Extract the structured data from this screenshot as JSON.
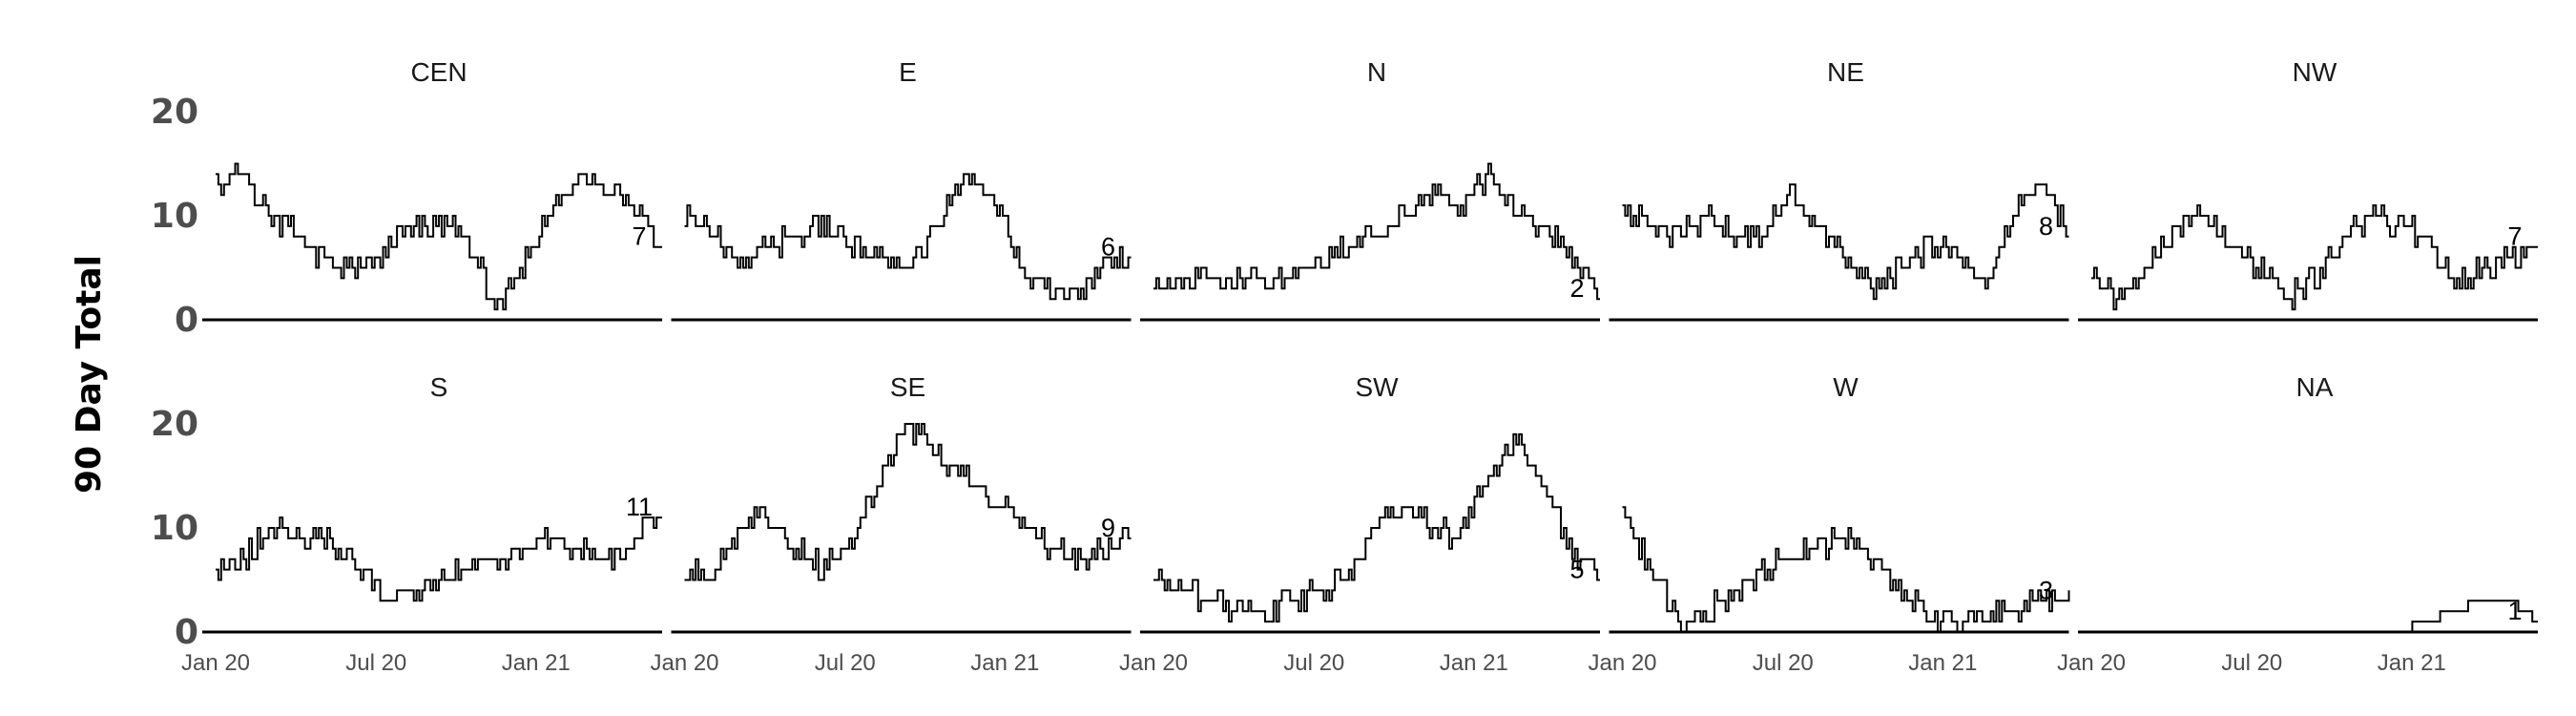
{
  "chart_data": {
    "type": "line",
    "ylabel": "90 Day Total",
    "xlabel": "",
    "layout": {
      "rows": 2,
      "cols": 5
    },
    "x_ticks": [
      "Jan 20",
      "Jul 20",
      "Jan 21"
    ],
    "y_ticks": [
      0,
      10,
      20
    ],
    "ylim": [
      0,
      20
    ],
    "xlim": [
      "Jan 2020",
      "May 2021"
    ],
    "grid": false,
    "line_color": "#000000",
    "panels": [
      {
        "name": "CEN",
        "end_label": "7",
        "x": [
          "2020-01",
          "2020-02",
          "2020-03",
          "2020-04",
          "2020-05",
          "2020-06",
          "2020-07",
          "2020-08",
          "2020-09",
          "2020-10",
          "2020-11",
          "2020-12",
          "2021-01",
          "2021-02",
          "2021-03",
          "2021-04",
          "2021-05"
        ],
        "values": [
          13,
          14,
          10,
          8,
          5,
          5,
          6,
          9,
          9,
          8,
          1,
          5,
          10,
          14,
          12,
          11,
          7
        ]
      },
      {
        "name": "E",
        "end_label": "6",
        "x": [
          "2020-01",
          "2020-02",
          "2020-03",
          "2020-04",
          "2020-05",
          "2020-06",
          "2020-07",
          "2020-08",
          "2020-09",
          "2020-10",
          "2020-11",
          "2020-12",
          "2021-01",
          "2021-02",
          "2021-03",
          "2021-04",
          "2021-05"
        ],
        "values": [
          10,
          8,
          6,
          7,
          8,
          9,
          7,
          6,
          5,
          9,
          13,
          12,
          5,
          3,
          2,
          6,
          6
        ]
      },
      {
        "name": "N",
        "end_label": "2",
        "x": [
          "2020-01",
          "2020-02",
          "2020-03",
          "2020-04",
          "2020-05",
          "2020-06",
          "2020-07",
          "2020-08",
          "2020-09",
          "2020-10",
          "2020-11",
          "2020-12",
          "2021-01",
          "2021-02",
          "2021-03",
          "2021-04",
          "2021-05"
        ],
        "values": [
          3,
          3,
          4,
          4,
          4,
          4,
          6,
          7,
          8,
          10,
          12,
          11,
          14,
          10,
          9,
          6,
          2
        ]
      },
      {
        "name": "NE",
        "end_label": "8",
        "x": [
          "2020-01",
          "2020-02",
          "2020-03",
          "2020-04",
          "2020-05",
          "2020-06",
          "2020-07",
          "2020-08",
          "2020-09",
          "2020-10",
          "2020-11",
          "2020-12",
          "2021-01",
          "2021-02",
          "2021-03",
          "2021-04",
          "2021-05"
        ],
        "values": [
          11,
          9,
          8,
          10,
          8,
          8,
          12,
          8,
          6,
          3,
          5,
          7,
          6,
          3,
          10,
          13,
          8
        ]
      },
      {
        "name": "NW",
        "end_label": "7",
        "x": [
          "2020-01",
          "2020-02",
          "2020-03",
          "2020-04",
          "2020-05",
          "2020-06",
          "2020-07",
          "2020-08",
          "2020-09",
          "2020-10",
          "2020-11",
          "2020-12",
          "2021-01",
          "2021-02",
          "2021-03",
          "2021-04",
          "2021-05"
        ],
        "values": [
          4,
          2,
          5,
          8,
          10,
          7,
          5,
          2,
          4,
          8,
          10,
          9,
          8,
          3,
          5,
          6,
          7
        ]
      },
      {
        "name": "S",
        "end_label": "11",
        "x": [
          "2020-01",
          "2020-02",
          "2020-03",
          "2020-04",
          "2020-05",
          "2020-06",
          "2020-07",
          "2020-08",
          "2020-09",
          "2020-10",
          "2020-11",
          "2020-12",
          "2021-01",
          "2021-02",
          "2021-03",
          "2021-04",
          "2021-05"
        ],
        "values": [
          6,
          7,
          10,
          9,
          9,
          6,
          3,
          4,
          5,
          6,
          7,
          8,
          9,
          8,
          7,
          9,
          11
        ]
      },
      {
        "name": "SE",
        "end_label": "9",
        "x": [
          "2020-01",
          "2020-02",
          "2020-03",
          "2020-04",
          "2020-05",
          "2020-06",
          "2020-07",
          "2020-08",
          "2020-09",
          "2020-10",
          "2020-11",
          "2020-12",
          "2021-01",
          "2021-02",
          "2021-03",
          "2021-04",
          "2021-05"
        ],
        "values": [
          6,
          5,
          10,
          11,
          8,
          6,
          9,
          15,
          20,
          17,
          15,
          12,
          11,
          8,
          7,
          8,
          9
        ]
      },
      {
        "name": "SW",
        "end_label": "5",
        "x": [
          "2020-01",
          "2020-02",
          "2020-03",
          "2020-04",
          "2020-05",
          "2020-06",
          "2020-07",
          "2020-08",
          "2020-09",
          "2020-10",
          "2020-11",
          "2020-12",
          "2021-01",
          "2021-02",
          "2021-03",
          "2021-04",
          "2021-05"
        ],
        "values": [
          5,
          4,
          3,
          2,
          2,
          3,
          4,
          5,
          10,
          12,
          10,
          9,
          15,
          18,
          14,
          8,
          5
        ]
      },
      {
        "name": "W",
        "end_label": "3",
        "x": [
          "2020-01",
          "2020-02",
          "2020-03",
          "2020-04",
          "2020-05",
          "2020-06",
          "2020-07",
          "2020-08",
          "2020-09",
          "2020-10",
          "2020-11",
          "2020-12",
          "2021-01",
          "2021-02",
          "2021-03",
          "2021-04",
          "2021-05"
        ],
        "values": [
          12,
          6,
          1,
          2,
          4,
          6,
          7,
          8,
          9,
          7,
          4,
          1,
          1,
          2,
          2,
          3,
          3
        ]
      },
      {
        "name": "NA",
        "end_label": "1",
        "x": [
          "2020-01",
          "2020-02",
          "2020-03",
          "2020-04",
          "2020-05",
          "2020-06",
          "2020-07",
          "2020-08",
          "2020-09",
          "2020-10",
          "2020-11",
          "2020-12",
          "2021-01",
          "2021-02",
          "2021-03",
          "2021-04",
          "2021-05"
        ],
        "values": [
          0,
          0,
          0,
          0,
          0,
          0,
          0,
          0,
          0,
          0,
          0,
          0,
          1,
          2,
          3,
          3,
          1
        ]
      }
    ]
  }
}
